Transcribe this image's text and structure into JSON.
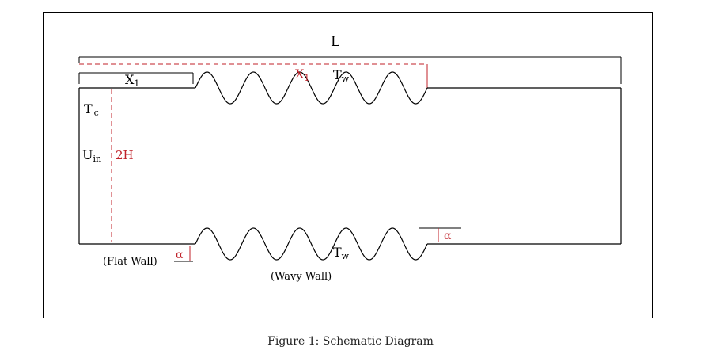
{
  "colors": {
    "line": "#000000",
    "accent": "#c0222a"
  },
  "labels": {
    "L": "L",
    "X1_main": "X",
    "X1_main_sub": "1",
    "X1_red": "X",
    "X1_red_sub": "1",
    "Tw_top": "T",
    "Tw_top_sub": "w",
    "Tw_bottom": "T",
    "Tw_bottom_sub": "w",
    "Tc": "T",
    "Tc_sub": "c",
    "Uin": "U",
    "Uin_sub": "in",
    "height_2H": "2H",
    "alpha_left": "α",
    "alpha_right": "α",
    "flat_wall": "(Flat Wall)",
    "wavy_wall": "(Wavy Wall)"
  },
  "diagram": {
    "wave_count": 5
  },
  "caption": "Figure 1: Schematic Diagram"
}
